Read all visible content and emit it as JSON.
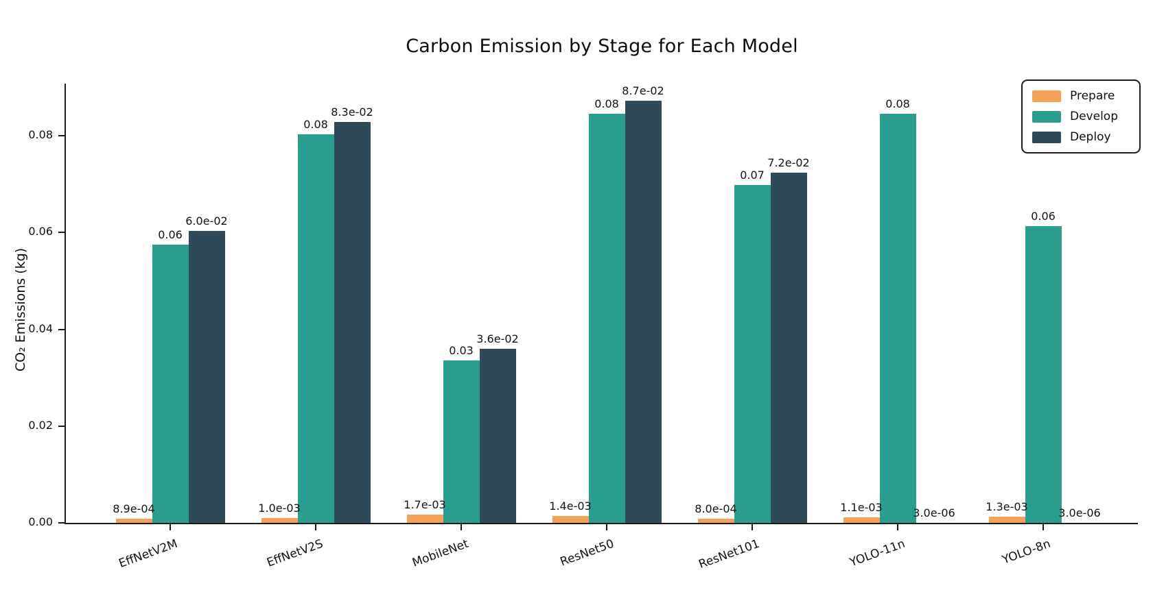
{
  "chart_data": {
    "type": "bar",
    "title": "Carbon Emission by Stage for Each Model",
    "xlabel": "",
    "ylabel": "CO₂ Emissions (kg)",
    "categories": [
      "EffNetV2M",
      "EffNetV2S",
      "MobileNet",
      "ResNet50",
      "ResNet101",
      "YOLO-11n",
      "YOLO-8n"
    ],
    "series": [
      {
        "name": "Prepare",
        "color": "#F4A25A",
        "values": [
          0.00089,
          0.001,
          0.0017,
          0.0014,
          0.0008,
          0.0011,
          0.0013
        ],
        "bar_labels": [
          "8.9e-04",
          "1.0e-03",
          "1.7e-03",
          "1.4e-03",
          "8.0e-04",
          "1.1e-03",
          "1.3e-03"
        ]
      },
      {
        "name": "Develop",
        "color": "#2A9D8F",
        "values": [
          0.0575,
          0.0803,
          0.0335,
          0.0845,
          0.0698,
          0.0845,
          0.0613
        ],
        "bar_labels": [
          "0.06",
          "0.08",
          "0.03",
          "0.08",
          "0.07",
          "0.08",
          "0.06"
        ]
      },
      {
        "name": "Deploy",
        "color": "#2F4B59",
        "values": [
          0.0603,
          0.0828,
          0.036,
          0.0872,
          0.0723,
          3e-06,
          3e-06
        ],
        "bar_labels": [
          "6.0e-02",
          "8.3e-02",
          "3.6e-02",
          "8.7e-02",
          "7.2e-02",
          "3.0e-06",
          "3.0e-06"
        ]
      }
    ],
    "yticks": [
      {
        "label": "0.00",
        "value": 0.0
      },
      {
        "label": "0.02",
        "value": 0.02
      },
      {
        "label": "0.04",
        "value": 0.04
      },
      {
        "label": "0.06",
        "value": 0.06
      },
      {
        "label": "0.08",
        "value": 0.08
      }
    ],
    "ylim": [
      0,
      0.0905
    ],
    "grid": false,
    "legend_position": "upper right"
  },
  "legend": {
    "items": [
      {
        "label": "Prepare",
        "color": "#F4A25A"
      },
      {
        "label": "Develop",
        "color": "#2A9D8F"
      },
      {
        "label": "Deploy",
        "color": "#2F4B59"
      }
    ]
  }
}
